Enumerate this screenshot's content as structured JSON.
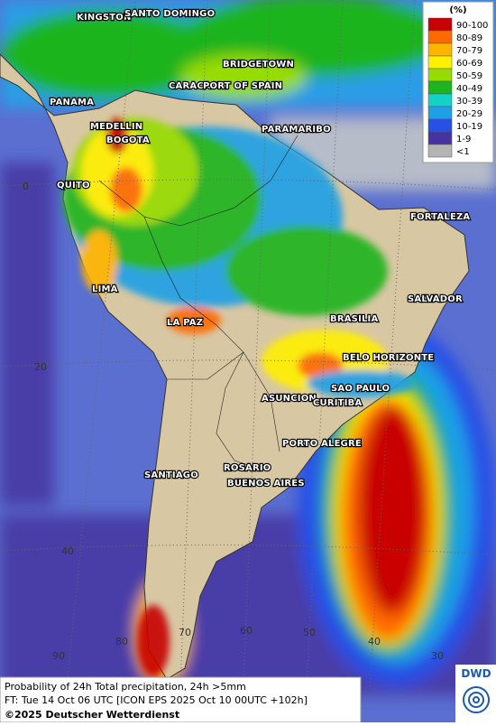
{
  "cities": [
    "KINGSTON",
    "SANTO DOMINGO",
    "BRIDGETOWN",
    "CARACAS",
    "PORT OF SPAIN",
    "PANAMA",
    "PARAMARIBO",
    "MEDELLIN",
    "BOGOTA",
    "QUITO",
    "FORTALEZA",
    "LIMA",
    "SALVADOR",
    "BRASILIA",
    "LA PAZ",
    "BELO HORIZONTE",
    "SAO PAULO",
    "ASUNCION",
    "CURITIBA",
    "PORTO ALEGRE",
    "ROSARIO",
    "SANTIAGO",
    "BUENOS AIRES"
  ],
  "latitude_labels": [
    0,
    20,
    40
  ],
  "longitude_labels": [
    90,
    80,
    70,
    60,
    50,
    40,
    30
  ],
  "legend": {
    "title": "(%)",
    "classes": [
      {
        "label": "90-100",
        "color": "#c80000"
      },
      {
        "label": "80-89",
        "color": "#ff6a00"
      },
      {
        "label": "70-79",
        "color": "#ffb400"
      },
      {
        "label": "60-69",
        "color": "#fff000"
      },
      {
        "label": "50-59",
        "color": "#96dc00"
      },
      {
        "label": "40-49",
        "color": "#1eb41e"
      },
      {
        "label": "30-39",
        "color": "#14d2c8"
      },
      {
        "label": "20-29",
        "color": "#1ea0e6"
      },
      {
        "label": "10-19",
        "color": "#2850e6"
      },
      {
        "label": "1-9",
        "color": "#4632a0"
      },
      {
        "label": "<1",
        "color": "#b4b4b4"
      }
    ]
  },
  "footer": {
    "line1": "Probability of 24h Total precipitation, 24h >5mm",
    "line2": "FT: Tue 14 Oct 06 UTC [ICON EPS 2025 Oct 10 00UTC +102h]",
    "line3": "©2025 Deutscher Wetterdienst",
    "logo": "DWD"
  }
}
